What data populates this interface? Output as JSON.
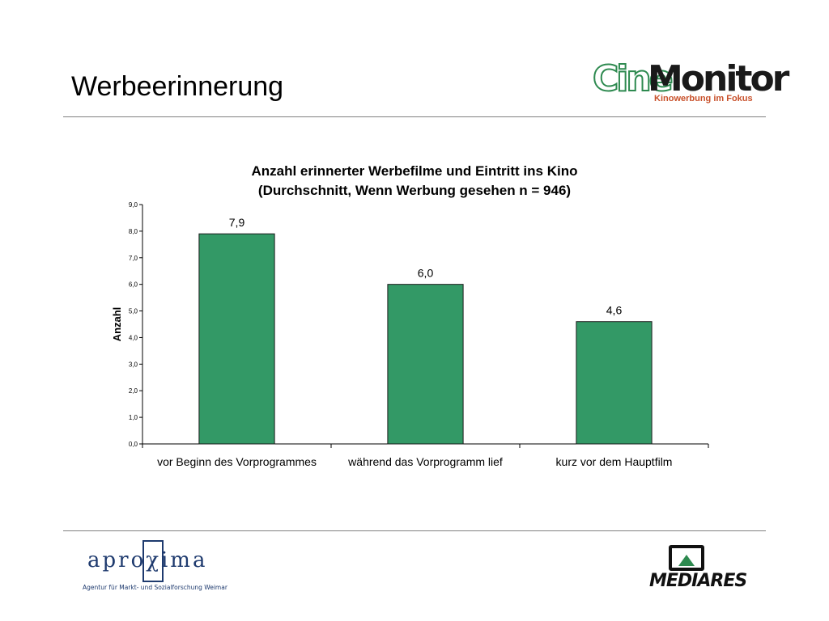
{
  "slide": {
    "title": "Werbeerinnerung"
  },
  "logos": {
    "cinemonitor": {
      "part1": "Cine",
      "part2": "Monitor",
      "tagline": "Kinowerbung im Fokus"
    },
    "aproxima": {
      "word": "aproχima",
      "subtitle": "Agentur für Markt- und Sozialforschung Weimar"
    },
    "mediares": {
      "word": "MEDIARES"
    }
  },
  "colors": {
    "bar": "#339966",
    "bar_stroke": "#1a1a1a",
    "rule": "#808080"
  },
  "chart_data": {
    "type": "bar",
    "title_line1": "Anzahl erinnerter Werbefilme und Eintritt ins Kino",
    "title_line2": "(Durchschnitt, Wenn Werbung gesehen n = 946)",
    "ylabel": "Anzahl",
    "xlabel": "",
    "ylim": [
      0,
      9
    ],
    "ytick_step": 1,
    "yticks": [
      "0,0",
      "1,0",
      "2,0",
      "3,0",
      "4,0",
      "5,0",
      "6,0",
      "7,0",
      "8,0",
      "9,0"
    ],
    "categories": [
      "vor Beginn des Vorprogrammes",
      "während das Vorprogramm lief",
      "kurz vor dem Hauptfilm"
    ],
    "values": [
      7.9,
      6.0,
      4.6
    ],
    "value_labels": [
      "7,9",
      "6,0",
      "4,6"
    ],
    "grid": false,
    "legend": "none"
  }
}
